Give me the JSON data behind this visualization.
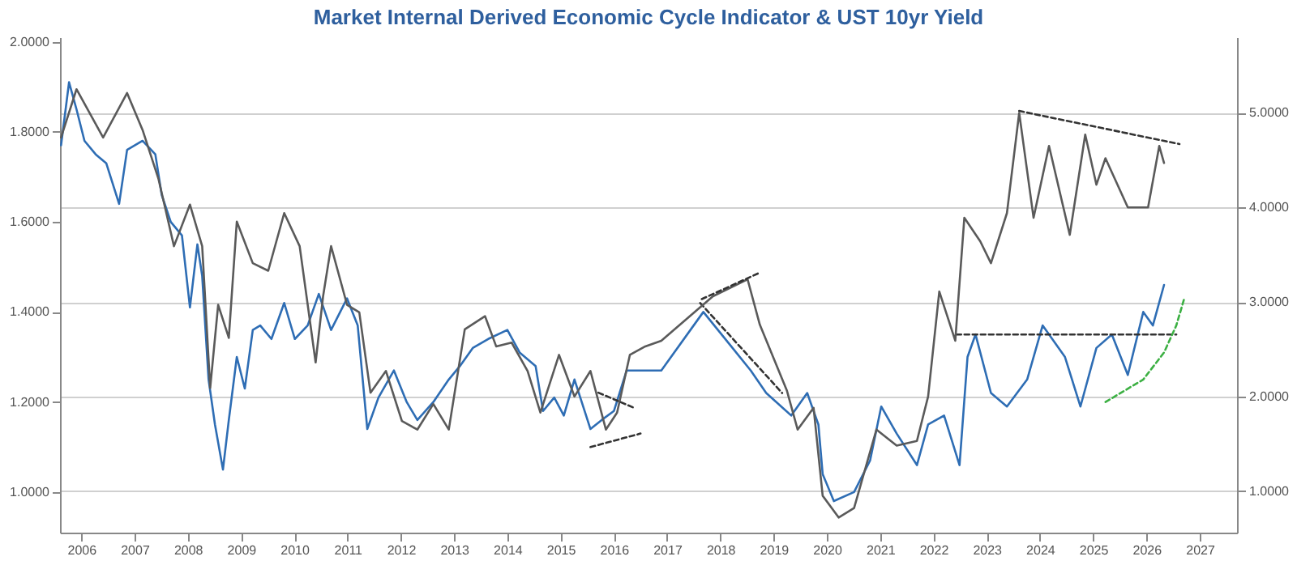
{
  "chart_data": {
    "type": "line",
    "title": "Market Internal Derived Economic Cycle Indicator & UST 10yr Yield",
    "x": [
      2006.12,
      2006.27,
      2006.41,
      2006.56,
      2006.77,
      2006.97,
      2007.21,
      2007.36,
      2007.65,
      2007.89,
      2008.01,
      2008.18,
      2008.39,
      2008.54,
      2008.68,
      2008.77,
      2008.89,
      2009.01,
      2009.16,
      2009.27,
      2009.42,
      2009.57,
      2009.72,
      2009.86,
      2010.07,
      2010.31,
      2010.51,
      2010.75,
      2010.96,
      2011.19,
      2011.49,
      2011.69,
      2011.87,
      2012.08,
      2012.37,
      2012.61,
      2012.81,
      2013.11,
      2013.4,
      2013.61,
      2013.85,
      2014.14,
      2014.5,
      2014.73,
      2015.03,
      2015.17,
      2015.38,
      2015.56,
      2015.76,
      2016.06,
      2016.27,
      2016.5,
      2016.74,
      2017.39,
      2018.18,
      2018.66,
      2019.07,
      2019.36,
      2019.83,
      2020.13,
      2020.34,
      2020.42,
      2020.63,
      2021.01,
      2021.31,
      2021.52,
      2021.81,
      2022.19,
      2022.4,
      2022.7,
      2022.99,
      2023.14,
      2023.29,
      2023.58,
      2023.88,
      2024.26,
      2024.55,
      2024.97,
      2025.26,
      2025.56,
      2025.85,
      2026.15,
      2026.44,
      2026.62,
      2026.83
    ],
    "series": [
      {
        "color": "#2e6db4",
        "axis": "y",
        "values": [
          1.77,
          1.91,
          1.85,
          1.78,
          1.75,
          1.73,
          1.64,
          1.76,
          1.78,
          1.75,
          1.66,
          1.6,
          1.57,
          1.41,
          1.55,
          1.48,
          1.25,
          1.15,
          1.05,
          1.16,
          1.3,
          1.23,
          1.36,
          1.37,
          1.34,
          1.42,
          1.34,
          1.37,
          1.44,
          1.36,
          1.43,
          1.37,
          1.14,
          1.21,
          1.27,
          1.2,
          1.16,
          1.2,
          1.25,
          1.28,
          1.32,
          1.34,
          1.36,
          1.31,
          1.28,
          1.18,
          1.21,
          1.17,
          1.25,
          1.14,
          1.16,
          1.18,
          1.27,
          1.27,
          1.4,
          1.33,
          1.27,
          1.22,
          1.17,
          1.22,
          1.15,
          1.04,
          0.98,
          1.0,
          1.07,
          1.19,
          1.13,
          1.06,
          1.15,
          1.17,
          1.06,
          1.3,
          1.35,
          1.22,
          1.19,
          1.25,
          1.37,
          1.3,
          1.19,
          1.32,
          1.35,
          1.26,
          1.4,
          1.37,
          1.46
        ]
      },
      {
        "color": "#5a5a5a",
        "axis": "y2",
        "x": [
          2006.12,
          2006.41,
          2006.91,
          2007.36,
          2007.65,
          2007.95,
          2008.24,
          2008.54,
          2008.77,
          2008.92,
          2009.07,
          2009.27,
          2009.42,
          2009.72,
          2010.01,
          2010.31,
          2010.6,
          2010.9,
          2011.04,
          2011.19,
          2011.49,
          2011.72,
          2011.93,
          2012.22,
          2012.52,
          2012.81,
          2013.11,
          2013.4,
          2013.7,
          2014.08,
          2014.29,
          2014.58,
          2014.88,
          2015.12,
          2015.47,
          2015.76,
          2016.06,
          2016.35,
          2016.56,
          2016.8,
          2017.09,
          2017.39,
          2018.36,
          2019.01,
          2019.24,
          2019.75,
          2019.95,
          2020.25,
          2020.42,
          2020.72,
          2021.01,
          2021.43,
          2021.81,
          2022.19,
          2022.4,
          2022.61,
          2022.91,
          2023.08,
          2023.38,
          2023.58,
          2023.88,
          2024.11,
          2024.38,
          2024.67,
          2025.06,
          2025.35,
          2025.56,
          2025.73,
          2026.15,
          2026.53,
          2026.74,
          2026.83
        ],
        "values": [
          4.74,
          5.25,
          4.74,
          5.21,
          4.82,
          4.3,
          3.59,
          4.03,
          3.59,
          2.09,
          2.97,
          2.62,
          3.85,
          3.41,
          3.33,
          3.94,
          3.59,
          2.36,
          3.06,
          3.59,
          2.97,
          2.89,
          2.04,
          2.27,
          1.74,
          1.65,
          1.92,
          1.65,
          2.71,
          2.85,
          2.53,
          2.57,
          2.27,
          1.83,
          2.44,
          2.0,
          2.27,
          1.65,
          1.83,
          2.44,
          2.53,
          2.59,
          3.06,
          3.24,
          2.76,
          2.06,
          1.65,
          1.88,
          0.95,
          0.72,
          0.82,
          1.65,
          1.48,
          1.53,
          2.0,
          3.11,
          2.59,
          3.89,
          3.64,
          3.41,
          3.94,
          5.0,
          3.89,
          4.65,
          3.71,
          4.77,
          4.24,
          4.52,
          4.0,
          4.0,
          4.65,
          4.47
        ]
      },
      {
        "color": "#333333",
        "axis": "y2",
        "line_style": "dashed",
        "x": [
          2018.15,
          2019.24
        ],
        "values": [
          3.03,
          3.31
        ]
      },
      {
        "color": "#333333",
        "axis": "y2",
        "line_style": "dashed",
        "x": [
          2016.21,
          2016.88
        ],
        "values": [
          2.04,
          1.88
        ]
      },
      {
        "color": "#333333",
        "axis": "y2",
        "line_style": "dashed",
        "x": [
          2024.11,
          2027.12
        ],
        "values": [
          5.02,
          4.67
        ]
      },
      {
        "color": "#333333",
        "axis": "y",
        "line_style": "dashed",
        "x": [
          2018.12,
          2019.66
        ],
        "values": [
          1.42,
          1.22
        ]
      },
      {
        "color": "#333333",
        "axis": "y",
        "line_style": "dashed",
        "x": [
          2016.06,
          2017.0
        ],
        "values": [
          1.1,
          1.13
        ]
      },
      {
        "color": "#333333",
        "axis": "y",
        "line_style": "dashed",
        "x": [
          2022.93,
          2027.06
        ],
        "values": [
          1.35,
          1.35
        ]
      },
      {
        "color": "#3cb043",
        "axis": "y",
        "line_style": "dashed",
        "x": [
          2025.73,
          2026.44,
          2026.83,
          2027.06,
          2027.21
        ],
        "values": [
          1.2,
          1.25,
          1.31,
          1.37,
          1.43
        ]
      }
    ],
    "xlim": [
      2006.1,
      2028.2
    ],
    "xticks": [
      {
        "value": 2006.5,
        "label": "2006"
      },
      {
        "value": 2007.5,
        "label": "2007"
      },
      {
        "value": 2008.5,
        "label": "2008"
      },
      {
        "value": 2009.5,
        "label": "2009"
      },
      {
        "value": 2010.5,
        "label": "2010"
      },
      {
        "value": 2011.5,
        "label": "2011"
      },
      {
        "value": 2012.5,
        "label": "2012"
      },
      {
        "value": 2013.5,
        "label": "2013"
      },
      {
        "value": 2014.5,
        "label": "2014"
      },
      {
        "value": 2015.5,
        "label": "2015"
      },
      {
        "value": 2016.5,
        "label": "2016"
      },
      {
        "value": 2017.5,
        "label": "2017"
      },
      {
        "value": 2018.5,
        "label": "2018"
      },
      {
        "value": 2019.5,
        "label": "2019"
      },
      {
        "value": 2020.5,
        "label": "2020"
      },
      {
        "value": 2021.5,
        "label": "2021"
      },
      {
        "value": 2022.5,
        "label": "2022"
      },
      {
        "value": 2023.5,
        "label": "2023"
      },
      {
        "value": 2024.5,
        "label": "2024"
      },
      {
        "value": 2025.5,
        "label": "2025"
      },
      {
        "value": 2026.5,
        "label": "2026"
      },
      {
        "value": 2027.5,
        "label": "2027"
      }
    ],
    "ylim": [
      0.91,
      2.01
    ],
    "yticks": [
      {
        "value": 1.0,
        "label": "1.0000"
      },
      {
        "value": 1.2,
        "label": "1.2000"
      },
      {
        "value": 1.4,
        "label": "1.4000"
      },
      {
        "value": 1.6,
        "label": "1.6000"
      },
      {
        "value": 1.8,
        "label": "1.8000"
      },
      {
        "value": 2.0,
        "label": "2.0000"
      }
    ],
    "y2lim": [
      0.56,
      5.8
    ],
    "y2ticks": [
      {
        "value": 1,
        "label": "1.0000"
      },
      {
        "value": 2,
        "label": "2.0000"
      },
      {
        "value": 3,
        "label": "3.0000"
      },
      {
        "value": 4,
        "label": "4.0000"
      },
      {
        "value": 5,
        "label": "5.0000"
      }
    ],
    "grid": "y2",
    "marker": "none",
    "line_style": "solid"
  }
}
